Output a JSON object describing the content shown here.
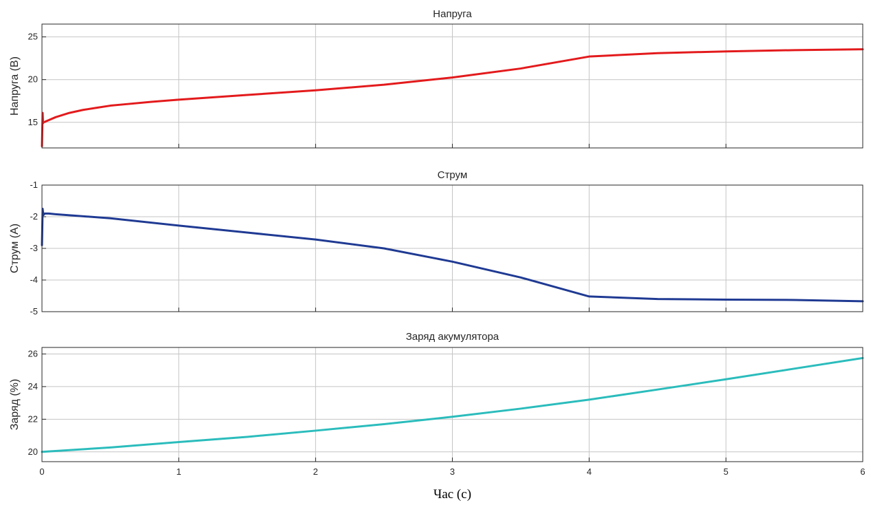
{
  "xlabel": "Час (с)",
  "x_ticks": [
    "0",
    "1",
    "2",
    "3",
    "4",
    "5",
    "6"
  ],
  "chart_data": [
    {
      "type": "line",
      "title": "Напруга",
      "ylabel": "Напруга (В)",
      "xlim": [
        0,
        6
      ],
      "ylim": [
        12,
        26.5
      ],
      "y_ticks": [
        "15",
        "20",
        "25"
      ],
      "grid": true,
      "color": "#e31a1c",
      "series": [
        {
          "x": [
            0,
            0.005,
            0.008,
            0.012,
            0.02,
            0.1,
            0.2,
            0.3,
            0.4,
            0.5,
            0.6,
            0.8,
            1.0,
            1.5,
            2.0,
            2.5,
            3.0,
            3.5,
            4.0,
            4.5,
            5.0,
            5.5,
            6.0
          ],
          "y": [
            12.2,
            16.1,
            14.9,
            15.0,
            15.05,
            15.6,
            16.1,
            16.45,
            16.7,
            16.95,
            17.1,
            17.4,
            17.65,
            18.2,
            18.75,
            19.4,
            20.25,
            21.3,
            22.7,
            23.1,
            23.3,
            23.45,
            23.55
          ]
        }
      ]
    },
    {
      "type": "line",
      "title": "Струм",
      "ylabel": "Струм (А)",
      "xlim": [
        0,
        6
      ],
      "ylim": [
        -5,
        -1
      ],
      "y_ticks": [
        "-1",
        "-2",
        "-3",
        "-4",
        "-5"
      ],
      "grid": true,
      "color": "#1f3a93",
      "series": [
        {
          "x": [
            0,
            0.005,
            0.01,
            0.02,
            0.05,
            0.1,
            0.5,
            1.0,
            1.5,
            2.0,
            2.5,
            3.0,
            3.5,
            4.0,
            4.5,
            5.0,
            5.5,
            6.0
          ],
          "y": [
            -2.9,
            -1.75,
            -1.95,
            -1.9,
            -1.9,
            -1.92,
            -2.05,
            -2.28,
            -2.5,
            -2.72,
            -3.0,
            -3.42,
            -3.92,
            -4.52,
            -4.6,
            -4.62,
            -4.63,
            -4.67
          ]
        }
      ]
    },
    {
      "type": "line",
      "title": "Заряд акумулятора",
      "ylabel": "Заряд (%)",
      "xlim": [
        0,
        6
      ],
      "ylim": [
        19.4,
        26.4
      ],
      "y_ticks": [
        "20",
        "22",
        "24",
        "26"
      ],
      "grid": true,
      "color": "#2bbcbc",
      "series": [
        {
          "x": [
            0,
            0.5,
            1.0,
            1.5,
            2.0,
            2.5,
            3.0,
            3.5,
            4.0,
            4.5,
            5.0,
            5.5,
            6.0
          ],
          "y": [
            20.0,
            20.27,
            20.6,
            20.92,
            21.3,
            21.7,
            22.15,
            22.65,
            23.2,
            23.82,
            24.45,
            25.1,
            25.75
          ]
        }
      ]
    }
  ]
}
